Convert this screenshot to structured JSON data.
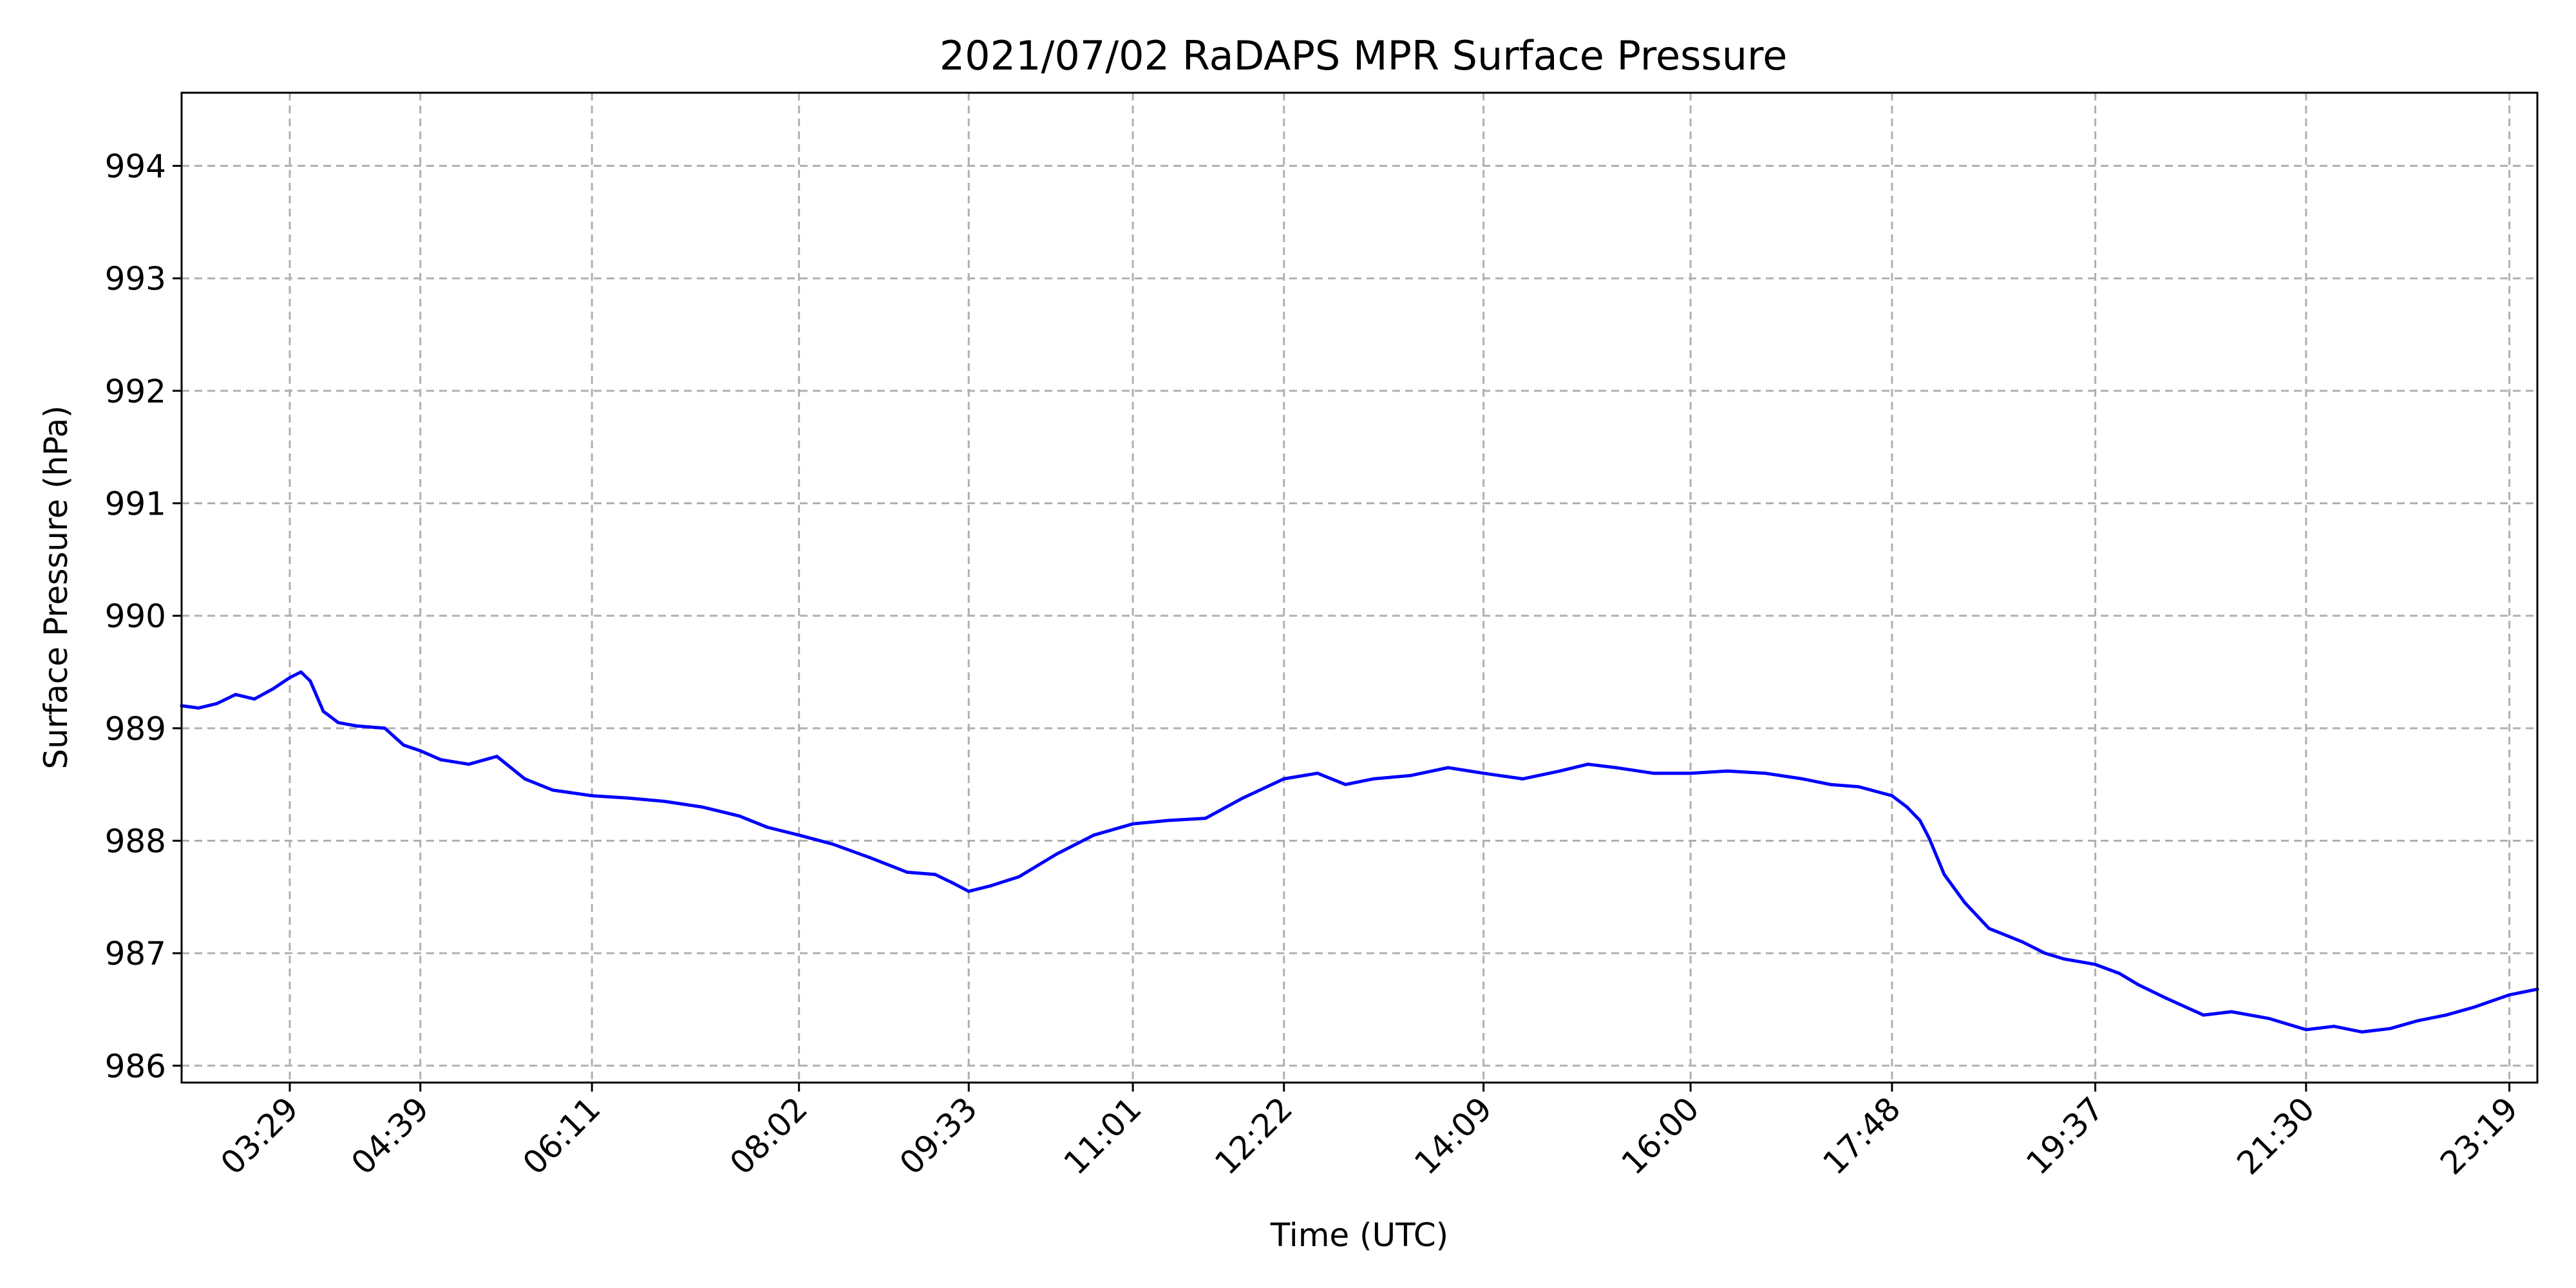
{
  "chart_data": {
    "type": "line",
    "title": "2021/07/02 RaDAPS MPR Surface Pressure",
    "xlabel": "Time (UTC)",
    "ylabel": "Surface Pressure (hPa)",
    "x_ticks": [
      "03:29",
      "04:39",
      "06:11",
      "08:02",
      "09:33",
      "11:01",
      "12:22",
      "14:09",
      "16:00",
      "17:48",
      "19:37",
      "21:30",
      "23:19"
    ],
    "y_ticks": [
      986,
      987,
      988,
      989,
      990,
      991,
      992,
      993,
      994
    ],
    "xlim": [
      "02:31",
      "23:34"
    ],
    "ylim": [
      985.85,
      994.65
    ],
    "grid": true,
    "colors": {
      "series": "#0000ff",
      "grid": "#b0b0b0"
    },
    "series": [
      {
        "x": [
          "02:31",
          "02:40",
          "02:50",
          "03:00",
          "03:10",
          "03:20",
          "03:29",
          "03:35",
          "03:40",
          "03:47",
          "03:55",
          "04:05",
          "04:20",
          "04:30",
          "04:39",
          "04:50",
          "05:05",
          "05:20",
          "05:35",
          "05:50",
          "06:11",
          "06:30",
          "06:50",
          "07:10",
          "07:30",
          "07:45",
          "08:02",
          "08:20",
          "08:40",
          "09:00",
          "09:15",
          "09:25",
          "09:33",
          "09:45",
          "10:00",
          "10:20",
          "10:40",
          "11:01",
          "11:20",
          "11:40",
          "12:00",
          "12:22",
          "12:40",
          "12:55",
          "13:10",
          "13:30",
          "13:50",
          "14:09",
          "14:30",
          "14:50",
          "15:05",
          "15:20",
          "15:40",
          "16:00",
          "16:20",
          "16:40",
          "17:00",
          "17:15",
          "17:30",
          "17:48",
          "17:56",
          "18:03",
          "18:08",
          "18:16",
          "18:27",
          "18:40",
          "18:58",
          "19:10",
          "19:20",
          "19:37",
          "19:50",
          "20:00",
          "20:15",
          "20:35",
          "20:50",
          "21:10",
          "21:30",
          "21:45",
          "22:00",
          "22:15",
          "22:30",
          "22:45",
          "23:00",
          "23:19",
          "23:34"
        ],
        "values": [
          989.2,
          989.18,
          989.22,
          989.3,
          989.26,
          989.35,
          989.45,
          989.5,
          989.42,
          989.15,
          989.05,
          989.02,
          989.0,
          988.85,
          988.8,
          988.72,
          988.68,
          988.75,
          988.55,
          988.45,
          988.4,
          988.38,
          988.35,
          988.3,
          988.22,
          988.12,
          988.05,
          987.97,
          987.85,
          987.72,
          987.7,
          987.62,
          987.55,
          987.6,
          987.68,
          987.88,
          988.05,
          988.15,
          988.18,
          988.2,
          988.38,
          988.55,
          988.6,
          988.5,
          988.55,
          988.58,
          988.65,
          988.6,
          988.55,
          988.62,
          988.68,
          988.65,
          988.6,
          988.6,
          988.62,
          988.6,
          988.55,
          988.5,
          988.48,
          988.4,
          988.3,
          988.18,
          988.02,
          987.7,
          987.45,
          987.22,
          987.1,
          987.0,
          986.95,
          986.9,
          986.82,
          986.72,
          986.6,
          986.45,
          986.48,
          986.42,
          986.32,
          986.35,
          986.3,
          986.33,
          986.4,
          986.45,
          986.52,
          986.63,
          986.68
        ]
      }
    ]
  }
}
